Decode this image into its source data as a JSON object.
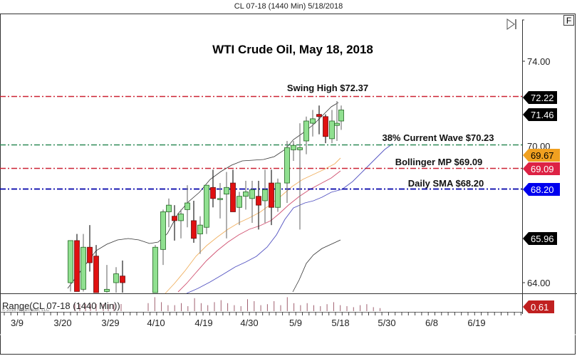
{
  "header": {
    "title": "CL 07-18 (1440 Min)  5/18/2018"
  },
  "toolbar": {
    "end_button_icon": "skip-to-end-icon",
    "f_button_label": "F"
  },
  "chart_data": {
    "type": "candlestick",
    "title": "WTI Crude Oil, May 18, 2018",
    "symbol": "CL 07-18",
    "interval": "1440 Min",
    "date": "5/18/2018",
    "xlabel": "",
    "ylabel": "",
    "ylim": [
      63.6,
      75.0
    ],
    "y_ticks": [
      "74.00",
      "64.00"
    ],
    "x_tick_labels": [
      "3/9",
      "3/20",
      "3/29",
      "4/10",
      "4/19",
      "4/30",
      "5/9",
      "5/18",
      "5/30",
      "6/8",
      "6/19"
    ],
    "annotations": [
      {
        "label": "Swing High $72.37",
        "value": 72.37,
        "color": "#cc2233",
        "style": "dash-dot"
      },
      {
        "label": "38% Current Wave $70.23",
        "value": 70.23,
        "color": "#2e8b57",
        "style": "dash-dot"
      },
      {
        "label": "Bollinger MP $69.09",
        "value": 69.09,
        "color": "#cc2233",
        "style": "dash-dot"
      },
      {
        "label": "Daily SMA $68.20",
        "value": 68.2,
        "color": "#0000aa",
        "style": "dash-dot"
      }
    ],
    "price_tags": [
      {
        "value": "72.22",
        "bg": "#000000",
        "fg": "#ffffff"
      },
      {
        "value": "71.46",
        "bg": "#000000",
        "fg": "#ffffff"
      },
      {
        "value": "69.67",
        "bg": "#f0a020",
        "fg": "#000000"
      },
      {
        "value": "69.09",
        "bg": "#dd2244",
        "fg": "#ffffff"
      },
      {
        "value": "68.20",
        "bg": "#0000ee",
        "fg": "#ffffff"
      },
      {
        "value": "65.96",
        "bg": "#000000",
        "fg": "#ffffff"
      }
    ],
    "indicator_panel": {
      "label": "Range(CL 07-18 (1440 Min))",
      "last_value": "0.61",
      "tag_bg": "#c02020"
    },
    "watermark": "© 2018 NinjaTrader, LLC",
    "candles": [
      {
        "date": "3/19",
        "o": 64.0,
        "h": 65.9,
        "l": 63.6,
        "c": 65.9
      },
      {
        "date": "3/20",
        "o": 65.9,
        "h": 66.2,
        "l": 63.6,
        "c": 63.6
      },
      {
        "date": "3/21",
        "o": 63.7,
        "h": 66.2,
        "l": 63.6,
        "c": 65.6
      },
      {
        "date": "3/22",
        "o": 65.6,
        "h": 66.6,
        "l": 64.5,
        "c": 64.9
      },
      {
        "date": "3/23",
        "o": 65.2,
        "h": 65.7,
        "l": 63.0,
        "c": 63.2
      },
      {
        "date": "3/26",
        "o": 63.6,
        "h": 64.8,
        "l": 62.4,
        "c": 63.7
      },
      {
        "date": "3/27",
        "o": 64.0,
        "h": 64.7,
        "l": 63.1,
        "c": 64.4
      },
      {
        "date": "3/28",
        "o": 64.3,
        "h": 65.0,
        "l": 63.3,
        "c": 64.0
      },
      {
        "date": "4/9",
        "o": 63.5,
        "h": 65.7,
        "l": 63.0,
        "c": 65.6
      },
      {
        "date": "4/10",
        "o": 65.5,
        "h": 67.3,
        "l": 64.8,
        "c": 67.2
      },
      {
        "date": "4/11",
        "o": 67.2,
        "h": 67.8,
        "l": 66.5,
        "c": 67.5
      },
      {
        "date": "4/12",
        "o": 67.0,
        "h": 67.5,
        "l": 65.9,
        "c": 66.8
      },
      {
        "date": "4/13",
        "o": 66.8,
        "h": 67.3,
        "l": 66.0,
        "c": 67.1
      },
      {
        "date": "4/16",
        "o": 67.3,
        "h": 68.4,
        "l": 66.5,
        "c": 67.6
      },
      {
        "date": "4/17",
        "o": 66.8,
        "h": 67.7,
        "l": 65.8,
        "c": 66.0
      },
      {
        "date": "4/18",
        "o": 66.2,
        "h": 67.0,
        "l": 65.3,
        "c": 66.6
      },
      {
        "date": "4/19",
        "o": 66.5,
        "h": 68.4,
        "l": 66.2,
        "c": 68.4
      },
      {
        "date": "4/20",
        "o": 68.3,
        "h": 69.1,
        "l": 67.4,
        "c": 67.8
      },
      {
        "date": "4/23",
        "o": 67.8,
        "h": 68.5,
        "l": 66.9,
        "c": 67.8
      },
      {
        "date": "4/24",
        "o": 68.0,
        "h": 69.0,
        "l": 66.0,
        "c": 68.3
      },
      {
        "date": "4/25",
        "o": 68.5,
        "h": 69.1,
        "l": 67.6,
        "c": 67.2
      },
      {
        "date": "4/26",
        "o": 67.4,
        "h": 68.1,
        "l": 66.6,
        "c": 67.9
      },
      {
        "date": "4/27",
        "o": 67.9,
        "h": 68.6,
        "l": 67.3,
        "c": 68.1
      },
      {
        "date": "4/30",
        "o": 67.8,
        "h": 68.6,
        "l": 66.7,
        "c": 68.2
      },
      {
        "date": "5/1",
        "o": 67.9,
        "h": 68.6,
        "l": 66.4,
        "c": 67.5
      },
      {
        "date": "5/2",
        "o": 67.7,
        "h": 69.1,
        "l": 66.7,
        "c": 68.2
      },
      {
        "date": "5/3",
        "o": 68.5,
        "h": 69.1,
        "l": 66.6,
        "c": 67.4
      },
      {
        "date": "5/4",
        "o": 67.4,
        "h": 68.7,
        "l": 67.2,
        "c": 68.5
      },
      {
        "date": "5/7",
        "o": 68.5,
        "h": 70.4,
        "l": 67.6,
        "c": 70.1
      },
      {
        "date": "5/8",
        "o": 70.0,
        "h": 70.4,
        "l": 69.5,
        "c": 70.2
      },
      {
        "date": "5/9",
        "o": 70.0,
        "h": 71.2,
        "l": 66.4,
        "c": 70.1
      },
      {
        "date": "5/10",
        "o": 70.4,
        "h": 71.5,
        "l": 69.8,
        "c": 71.3
      },
      {
        "date": "5/11",
        "o": 71.2,
        "h": 71.8,
        "l": 70.6,
        "c": 71.4
      },
      {
        "date": "5/14",
        "o": 71.6,
        "h": 72.0,
        "l": 70.7,
        "c": 71.5
      },
      {
        "date": "5/15",
        "o": 71.5,
        "h": 71.6,
        "l": 70.3,
        "c": 70.6
      },
      {
        "date": "5/16",
        "o": 70.5,
        "h": 71.8,
        "l": 70.3,
        "c": 71.3
      },
      {
        "date": "5/17",
        "o": 71.1,
        "h": 72.2,
        "l": 70.4,
        "c": 71.2
      },
      {
        "date": "5/18",
        "o": 71.3,
        "h": 72.0,
        "l": 70.9,
        "c": 71.8
      }
    ]
  }
}
